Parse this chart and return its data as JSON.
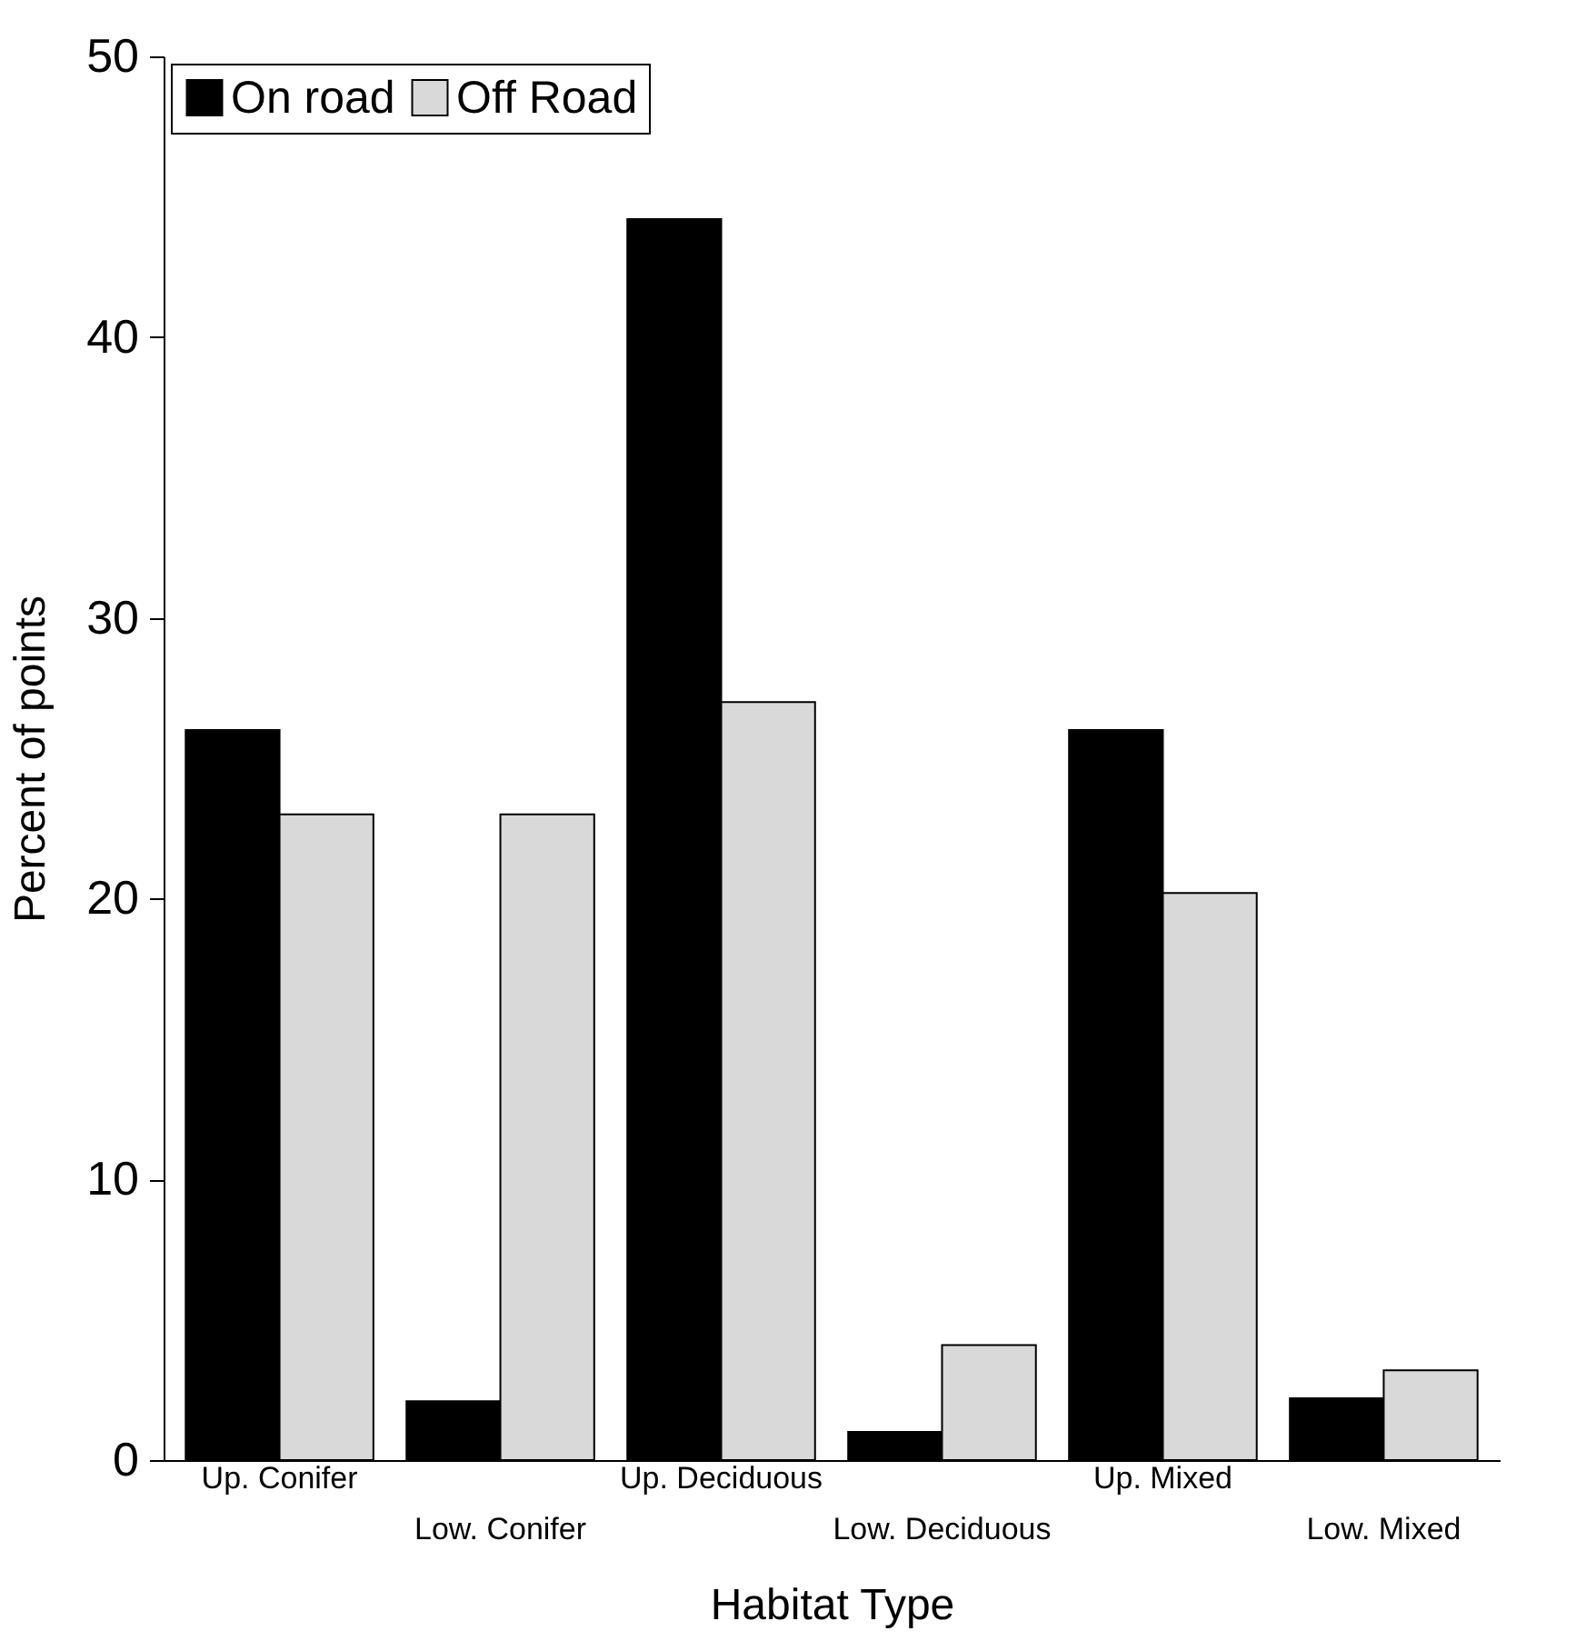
{
  "chart_data": {
    "type": "bar",
    "xlabel": "Habitat Type",
    "ylabel": "Percent of points",
    "categories": [
      "Up. Conifer",
      "Low. Conifer",
      "Up. Deciduous",
      "Low. Deciduous",
      "Up. Mixed",
      "Low. Mixed"
    ],
    "series": [
      {
        "name": "On road",
        "color": "#000000",
        "values": [
          26,
          2.1,
          44.2,
          1,
          26,
          2.2
        ]
      },
      {
        "name": "Off Road",
        "color": "#d9d9d9",
        "values": [
          23,
          23,
          27,
          4.1,
          20.2,
          3.2
        ]
      }
    ],
    "ylim": [
      0,
      50
    ],
    "yticks": [
      0,
      10,
      20,
      30,
      40,
      50
    ],
    "grid": false,
    "legend": "top left"
  }
}
